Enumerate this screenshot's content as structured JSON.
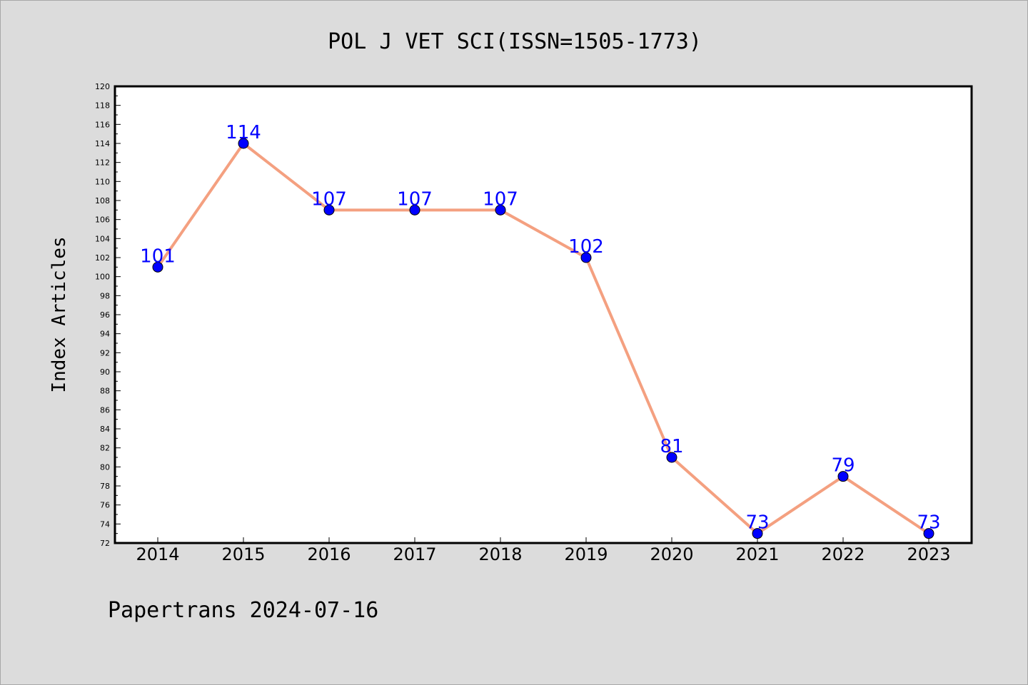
{
  "chart_data": {
    "type": "line",
    "title": "POL J VET SCI(ISSN=1505-1773)",
    "ylabel": "Index Articles",
    "xlabel": "",
    "footer": "Papertrans 2024-07-16",
    "categories": [
      "2014",
      "2015",
      "2016",
      "2017",
      "2018",
      "2019",
      "2020",
      "2021",
      "2022",
      "2023"
    ],
    "series": [
      {
        "values": [
          101,
          114,
          107,
          107,
          107,
          102,
          81,
          73,
          79,
          73
        ]
      }
    ],
    "ylim": [
      72,
      120
    ],
    "ytick_step": 2,
    "grid": false,
    "legend": "none",
    "colors": {
      "background": "#dcdcdc",
      "plot_background": "#ffffff",
      "line": "#f4a080",
      "marker": "#0000ff",
      "label": "#0000ff"
    }
  }
}
